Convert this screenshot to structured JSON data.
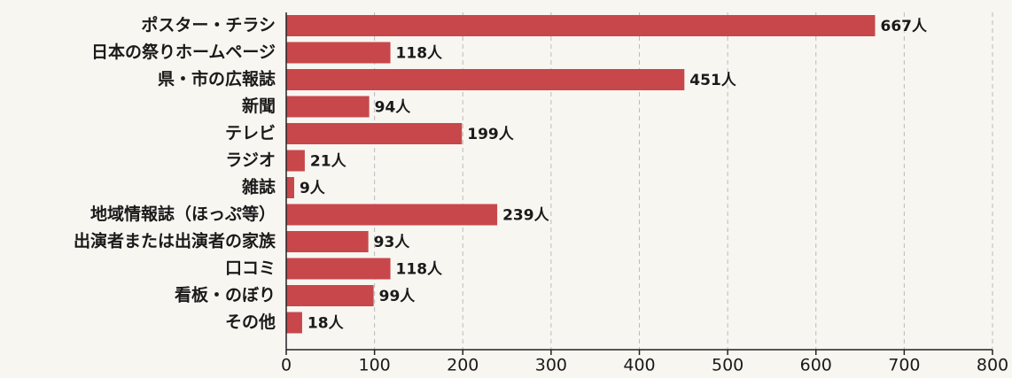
{
  "chart_data": {
    "type": "bar",
    "orientation": "horizontal",
    "categories": [
      "ポスター・チラシ",
      "日本の祭りホームページ",
      "県・市の広報誌",
      "新聞",
      "テレビ",
      "ラジオ",
      "雑誌",
      "地域情報誌（ほっぷ等）",
      "出演者または出演者の家族",
      "口コミ",
      "看板・のぼり",
      "その他"
    ],
    "values": [
      667,
      118,
      451,
      94,
      199,
      21,
      9,
      239,
      93,
      118,
      99,
      18
    ],
    "value_labels": [
      "667人",
      "118人",
      "451人",
      "94人",
      "199人",
      "21人",
      "9人",
      "239人",
      "93人",
      "118人",
      "99人",
      "18人"
    ],
    "color": "#c8474a",
    "xlim": [
      0,
      800
    ],
    "xticks": [
      0,
      100,
      200,
      300,
      400,
      500,
      600,
      700,
      800
    ],
    "grid": true
  }
}
